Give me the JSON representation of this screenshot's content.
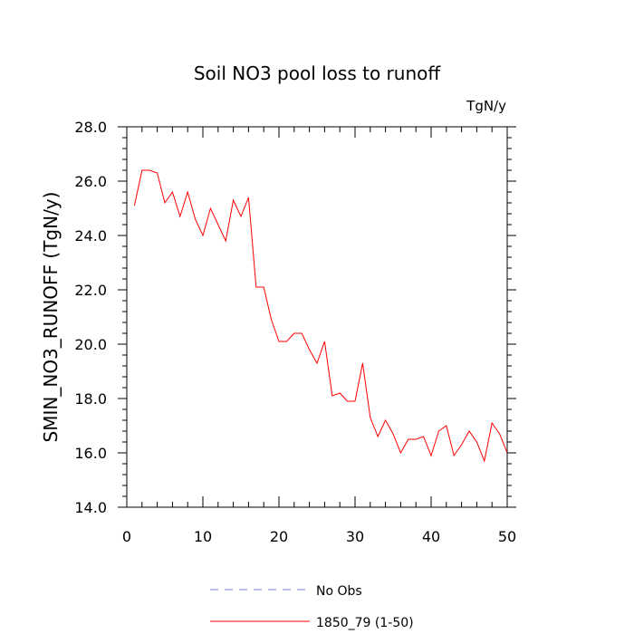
{
  "chart_data": {
    "type": "line",
    "title": "Soil NO3 pool loss to runoff",
    "units": "TgN/y",
    "ylabel": "SMIN_NO3_RUNOFF  (TgN/y)",
    "xlabel": "",
    "xlim": [
      0,
      50
    ],
    "ylim": [
      14.0,
      28.0
    ],
    "x_ticks": [
      0,
      10,
      20,
      30,
      40,
      50
    ],
    "x_tick_labels": [
      "0",
      "10",
      "20",
      "30",
      "40",
      "50"
    ],
    "y_ticks": [
      14,
      16,
      18,
      20,
      22,
      24,
      26,
      28
    ],
    "y_tick_labels": [
      "14.0",
      "16.0",
      "18.0",
      "20.0",
      "22.0",
      "24.0",
      "26.0",
      "28.0"
    ],
    "grid": false,
    "legend_position": "bottom",
    "legend": [
      {
        "label": "No Obs",
        "color": "#7777ee",
        "style": "dashed"
      },
      {
        "label": "1850_79 (1-50)",
        "color": "#ff0000",
        "style": "solid"
      }
    ],
    "series": [
      {
        "name": "1850_79 (1-50)",
        "color": "#ff0000",
        "x": [
          1,
          2,
          3,
          4,
          5,
          6,
          7,
          8,
          9,
          10,
          11,
          12,
          13,
          14,
          15,
          16,
          17,
          18,
          19,
          20,
          21,
          22,
          23,
          24,
          25,
          26,
          27,
          28,
          29,
          30,
          31,
          32,
          33,
          34,
          35,
          36,
          37,
          38,
          39,
          40,
          41,
          42,
          43,
          44,
          45,
          46,
          47,
          48,
          49,
          50
        ],
        "y": [
          25.1,
          26.4,
          26.4,
          26.3,
          25.2,
          25.6,
          24.7,
          25.6,
          24.6,
          24.0,
          25.0,
          24.4,
          23.8,
          25.3,
          24.7,
          25.4,
          22.1,
          22.1,
          20.9,
          20.1,
          20.1,
          20.4,
          20.4,
          19.8,
          19.3,
          20.1,
          18.1,
          18.2,
          17.9,
          17.9,
          19.3,
          17.3,
          16.6,
          17.2,
          16.7,
          16.0,
          16.5,
          16.5,
          16.6,
          15.9,
          16.8,
          17.0,
          15.9,
          16.3,
          16.8,
          16.4,
          15.7,
          17.1,
          16.7,
          16.0
        ]
      }
    ]
  }
}
